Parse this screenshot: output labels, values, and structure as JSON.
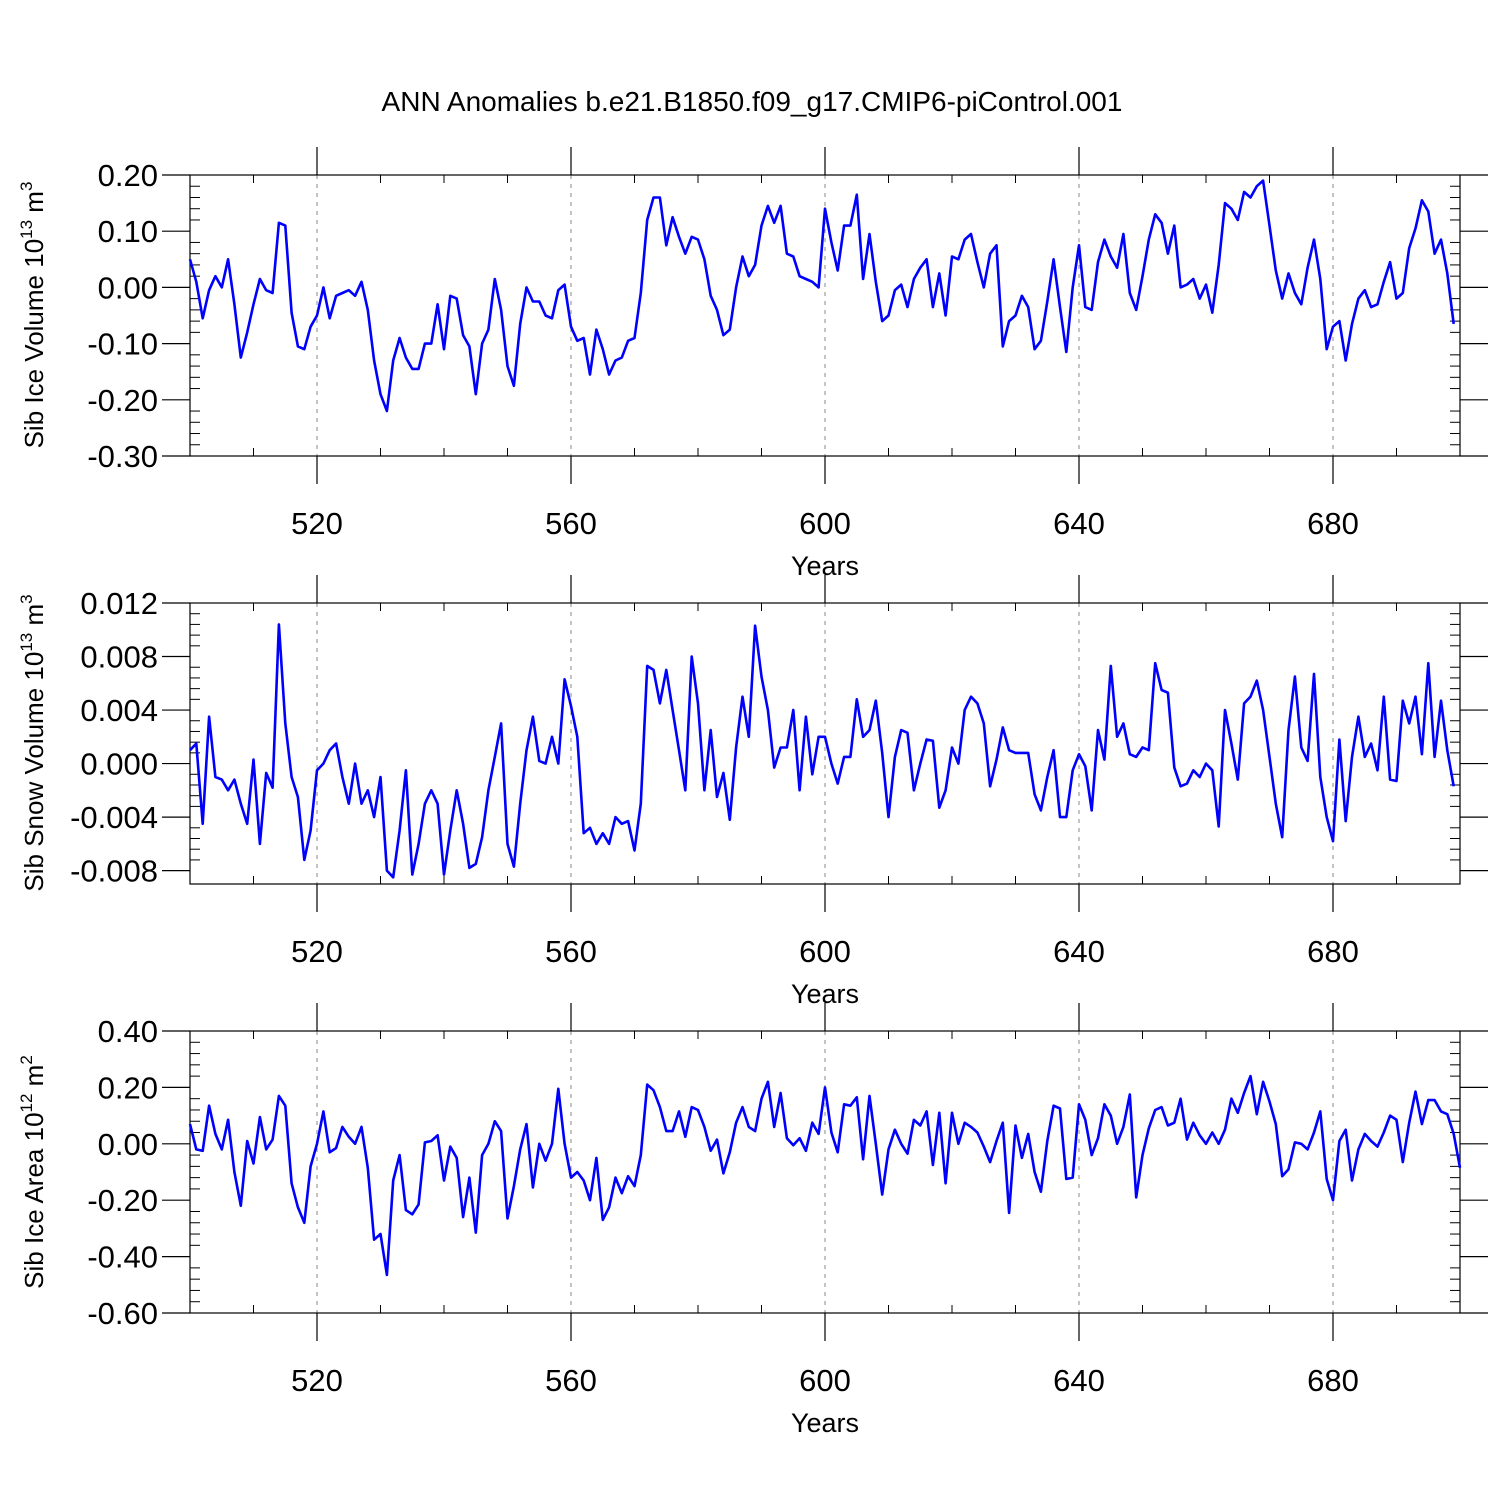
{
  "figure_title": "ANN Anomalies b.e21.B1850.f09_g17.CMIP6-piControl.001",
  "colors": {
    "line": "#0000ff",
    "axis": "#000000",
    "grid": "#888888"
  },
  "chart_data": [
    {
      "type": "line",
      "ylabel": {
        "text": "Sib Ice Volume 10",
        "exponent": "13",
        "unit": " m",
        "unit_exponent": "3"
      },
      "xlabel": "Years",
      "xlim": [
        500,
        700
      ],
      "ylim": [
        -0.3,
        0.2
      ],
      "yticks": [
        "0.20",
        "0.10",
        "0.00",
        "-0.10",
        "-0.20",
        "-0.30"
      ],
      "ytick_values": [
        0.2,
        0.1,
        0.0,
        -0.1,
        -0.2,
        -0.3
      ],
      "xticks": [
        "520",
        "560",
        "600",
        "640",
        "680"
      ],
      "xtick_values": [
        520,
        560,
        600,
        640,
        680
      ],
      "grid": "vertical dashed",
      "x_start": 500,
      "values": [
        0.05,
        0.01,
        -0.055,
        -0.005,
        0.02,
        0.0,
        0.05,
        -0.03,
        -0.125,
        -0.08,
        -0.03,
        0.015,
        -0.005,
        -0.01,
        0.115,
        0.11,
        -0.045,
        -0.105,
        -0.11,
        -0.07,
        -0.05,
        0.0,
        -0.055,
        -0.015,
        -0.01,
        -0.005,
        -0.015,
        0.01,
        -0.04,
        -0.13,
        -0.19,
        -0.22,
        -0.13,
        -0.09,
        -0.125,
        -0.145,
        -0.145,
        -0.1,
        -0.1,
        -0.03,
        -0.11,
        -0.015,
        -0.02,
        -0.085,
        -0.105,
        -0.19,
        -0.1,
        -0.075,
        0.015,
        -0.04,
        -0.14,
        -0.175,
        -0.065,
        0.0,
        -0.025,
        -0.025,
        -0.05,
        -0.055,
        -0.005,
        0.005,
        -0.07,
        -0.095,
        -0.09,
        -0.155,
        -0.075,
        -0.11,
        -0.155,
        -0.13,
        -0.125,
        -0.095,
        -0.09,
        -0.01,
        0.12,
        0.16,
        0.16,
        0.075,
        0.125,
        0.09,
        0.06,
        0.09,
        0.085,
        0.05,
        -0.015,
        -0.04,
        -0.085,
        -0.075,
        0.0,
        0.055,
        0.02,
        0.04,
        0.11,
        0.145,
        0.115,
        0.145,
        0.06,
        0.055,
        0.02,
        0.015,
        0.01,
        0.0,
        0.14,
        0.08,
        0.03,
        0.11,
        0.11,
        0.165,
        0.015,
        0.095,
        0.01,
        -0.06,
        -0.05,
        -0.005,
        0.005,
        -0.035,
        0.015,
        0.035,
        0.05,
        -0.035,
        0.025,
        -0.05,
        0.055,
        0.05,
        0.085,
        0.095,
        0.045,
        0.0,
        0.06,
        0.075,
        -0.105,
        -0.06,
        -0.05,
        -0.015,
        -0.035,
        -0.11,
        -0.095,
        -0.025,
        0.05,
        -0.035,
        -0.115,
        0.0,
        0.075,
        -0.035,
        -0.04,
        0.045,
        0.085,
        0.055,
        0.035,
        0.095,
        -0.01,
        -0.04,
        0.02,
        0.085,
        0.13,
        0.115,
        0.06,
        0.11,
        0.0,
        0.005,
        0.015,
        -0.02,
        0.005,
        -0.045,
        0.04,
        0.15,
        0.14,
        0.12,
        0.17,
        0.16,
        0.18,
        0.19,
        0.11,
        0.03,
        -0.02,
        0.025,
        -0.01,
        -0.03,
        0.035,
        0.085,
        0.015,
        -0.11,
        -0.07,
        -0.06,
        -0.13,
        -0.065,
        -0.02,
        -0.005,
        -0.035,
        -0.03,
        0.01,
        0.045,
        -0.02,
        -0.01,
        0.07,
        0.105,
        0.155,
        0.135,
        0.06,
        0.085,
        0.025,
        -0.065
      ]
    },
    {
      "type": "line",
      "ylabel": {
        "text": "Sib Snow Volume 10",
        "exponent": "13",
        "unit": " m",
        "unit_exponent": "3"
      },
      "xlabel": "Years",
      "xlim": [
        500,
        700
      ],
      "ylim": [
        -0.009,
        0.012
      ],
      "yticks": [
        "0.012",
        "0.008",
        "0.004",
        "0.000",
        "-0.004",
        "-0.008"
      ],
      "ytick_values": [
        0.012,
        0.008,
        0.004,
        0.0,
        -0.004,
        -0.008
      ],
      "xticks": [
        "520",
        "560",
        "600",
        "640",
        "680"
      ],
      "xtick_values": [
        520,
        560,
        600,
        640,
        680
      ],
      "grid": "vertical dashed",
      "x_start": 500,
      "values": [
        0.001,
        0.0015,
        -0.0045,
        0.0035,
        -0.001,
        -0.0012,
        -0.002,
        -0.0012,
        -0.003,
        -0.0045,
        0.0003,
        -0.006,
        -0.0007,
        -0.0018,
        0.0104,
        0.003,
        -0.001,
        -0.0025,
        -0.0072,
        -0.005,
        -0.0005,
        0.0,
        0.001,
        0.0015,
        -0.001,
        -0.003,
        0.0,
        -0.003,
        -0.002,
        -0.004,
        -0.001,
        -0.008,
        -0.0085,
        -0.005,
        -0.0005,
        -0.0083,
        -0.006,
        -0.003,
        -0.002,
        -0.003,
        -0.0083,
        -0.005,
        -0.002,
        -0.0045,
        -0.0078,
        -0.0075,
        -0.0055,
        -0.002,
        0.0005,
        0.003,
        -0.006,
        -0.0077,
        -0.003,
        0.001,
        0.0035,
        0.0002,
        0.0,
        0.002,
        0.0,
        0.0063,
        0.0043,
        0.002,
        -0.0052,
        -0.0048,
        -0.006,
        -0.0052,
        -0.006,
        -0.004,
        -0.0045,
        -0.0043,
        -0.0065,
        -0.003,
        0.0073,
        0.007,
        0.0045,
        0.007,
        0.004,
        0.001,
        -0.002,
        0.008,
        0.0045,
        -0.002,
        0.0025,
        -0.0025,
        -0.0007,
        -0.0042,
        0.0012,
        0.005,
        0.002,
        0.0103,
        0.0065,
        0.004,
        -0.0003,
        0.0012,
        0.0012,
        0.004,
        -0.002,
        0.0035,
        -0.0008,
        0.002,
        0.002,
        0.0,
        -0.0015,
        0.0005,
        0.0005,
        0.0048,
        0.002,
        0.0025,
        0.0047,
        0.0008,
        -0.004,
        0.0005,
        0.0025,
        0.0023,
        -0.002,
        0.0,
        0.0018,
        0.0017,
        -0.0033,
        -0.002,
        0.0012,
        0.0,
        0.004,
        0.005,
        0.0045,
        0.003,
        -0.0017,
        0.0003,
        0.0027,
        0.001,
        0.0008,
        0.0008,
        0.0008,
        -0.0023,
        -0.0035,
        -0.001,
        0.001,
        -0.004,
        -0.004,
        -0.0005,
        0.0007,
        -0.0002,
        -0.0035,
        0.0025,
        0.0003,
        0.0073,
        0.002,
        0.003,
        0.0007,
        0.0005,
        0.0012,
        0.001,
        0.0075,
        0.0055,
        0.0053,
        -0.0003,
        -0.0017,
        -0.0015,
        -0.0005,
        -0.001,
        0.0,
        -0.0005,
        -0.0047,
        0.004,
        0.0015,
        -0.0012,
        0.0045,
        0.005,
        0.0062,
        0.004,
        0.0005,
        -0.003,
        -0.0055,
        0.0025,
        0.0065,
        0.0012,
        0.0002,
        0.0067,
        -0.001,
        -0.004,
        -0.0058,
        0.0018,
        -0.0043,
        0.0005,
        0.0035,
        0.0005,
        0.0015,
        -0.0005,
        0.005,
        -0.0012,
        -0.0013,
        0.0047,
        0.003,
        0.005,
        0.0007,
        0.0075,
        0.0005,
        0.0047,
        0.001,
        -0.0017
      ]
    },
    {
      "type": "line",
      "ylabel": {
        "text": "Sib Ice Area 10",
        "exponent": "12",
        "unit": " m",
        "unit_exponent": "2"
      },
      "xlabel": "Years",
      "xlim": [
        500,
        700
      ],
      "ylim": [
        -0.6,
        0.4
      ],
      "yticks": [
        "0.40",
        "0.20",
        "0.00",
        "-0.20",
        "-0.40",
        "-0.60"
      ],
      "ytick_values": [
        0.4,
        0.2,
        0.0,
        -0.2,
        -0.4,
        -0.6
      ],
      "xticks": [
        "520",
        "560",
        "600",
        "640",
        "680"
      ],
      "xtick_values": [
        520,
        560,
        600,
        640,
        680
      ],
      "grid": "vertical dashed",
      "x_start": 500,
      "values": [
        0.07,
        -0.02,
        -0.025,
        0.135,
        0.035,
        -0.02,
        0.085,
        -0.1,
        -0.22,
        0.01,
        -0.07,
        0.095,
        -0.02,
        0.015,
        0.17,
        0.135,
        -0.14,
        -0.225,
        -0.28,
        -0.08,
        0.0,
        0.115,
        -0.03,
        -0.015,
        0.06,
        0.025,
        0.0,
        0.06,
        -0.085,
        -0.34,
        -0.32,
        -0.465,
        -0.13,
        -0.04,
        -0.235,
        -0.25,
        -0.215,
        0.005,
        0.01,
        0.03,
        -0.13,
        -0.01,
        -0.05,
        -0.26,
        -0.12,
        -0.315,
        -0.04,
        0.0,
        0.08,
        0.045,
        -0.265,
        -0.15,
        -0.02,
        0.07,
        -0.155,
        0.0,
        -0.06,
        0.0,
        0.195,
        0.0,
        -0.12,
        -0.1,
        -0.13,
        -0.2,
        -0.05,
        -0.27,
        -0.225,
        -0.12,
        -0.175,
        -0.115,
        -0.15,
        -0.04,
        0.21,
        0.19,
        0.13,
        0.045,
        0.045,
        0.115,
        0.025,
        0.13,
        0.12,
        0.06,
        -0.025,
        0.015,
        -0.105,
        -0.03,
        0.075,
        0.13,
        0.06,
        0.045,
        0.16,
        0.22,
        0.06,
        0.18,
        0.02,
        -0.005,
        0.02,
        -0.025,
        0.075,
        0.035,
        0.2,
        0.04,
        -0.03,
        0.14,
        0.135,
        0.165,
        -0.055,
        0.17,
        0.0,
        -0.18,
        -0.02,
        0.05,
        0.0,
        -0.035,
        0.085,
        0.065,
        0.115,
        -0.075,
        0.11,
        -0.14,
        0.11,
        0.0,
        0.075,
        0.06,
        0.04,
        -0.01,
        -0.065,
        0.01,
        0.075,
        -0.245,
        0.065,
        -0.05,
        0.035,
        -0.1,
        -0.17,
        0.01,
        0.135,
        0.125,
        -0.125,
        -0.12,
        0.14,
        0.085,
        -0.04,
        0.02,
        0.14,
        0.1,
        0.0,
        0.06,
        0.175,
        -0.19,
        -0.04,
        0.055,
        0.12,
        0.13,
        0.065,
        0.075,
        0.16,
        0.015,
        0.075,
        0.03,
        0.0,
        0.04,
        0.0,
        0.05,
        0.16,
        0.11,
        0.18,
        0.24,
        0.105,
        0.22,
        0.15,
        0.07,
        -0.115,
        -0.09,
        0.005,
        0.0,
        -0.02,
        0.04,
        0.115,
        -0.125,
        -0.2,
        0.01,
        0.05,
        -0.13,
        -0.02,
        0.035,
        0.01,
        -0.01,
        0.04,
        0.1,
        0.085,
        -0.065,
        0.075,
        0.185,
        0.07,
        0.155,
        0.155,
        0.115,
        0.105,
        0.035,
        -0.085
      ]
    }
  ]
}
